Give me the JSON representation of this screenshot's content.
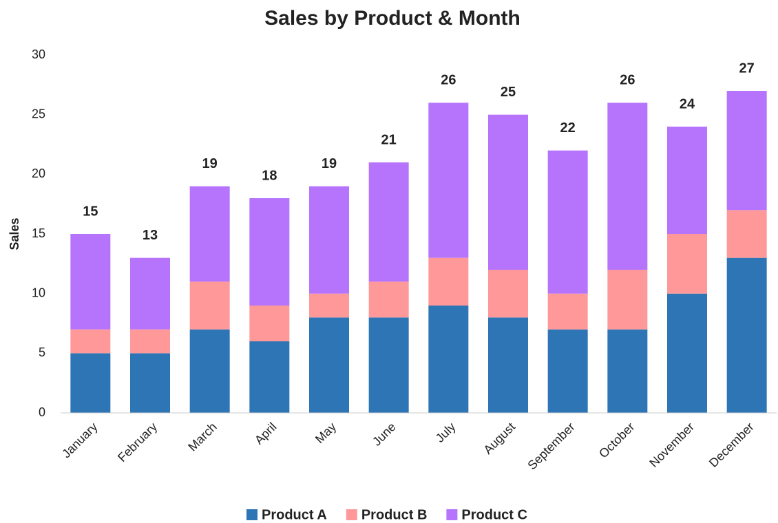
{
  "chart_data": {
    "type": "stacked_bar",
    "title": "Sales by Product & Month",
    "y_label": "Sales",
    "categories": [
      "January",
      "February",
      "March",
      "April",
      "May",
      "June",
      "July",
      "August",
      "September",
      "October",
      "November",
      "December"
    ],
    "series": [
      {
        "name": "Product A",
        "color": "#2e75b6",
        "values": [
          5,
          5,
          7,
          6,
          8,
          8,
          9,
          8,
          7,
          7,
          10,
          13
        ]
      },
      {
        "name": "Product B",
        "color": "#ff9999",
        "values": [
          2,
          2,
          4,
          3,
          2,
          3,
          4,
          4,
          3,
          5,
          5,
          4
        ]
      },
      {
        "name": "Product C",
        "color": "#b574fb",
        "values": [
          8,
          6,
          8,
          9,
          9,
          10,
          13,
          13,
          12,
          14,
          9,
          10
        ]
      }
    ],
    "totals": [
      15,
      13,
      19,
      18,
      19,
      21,
      26,
      25,
      22,
      26,
      24,
      27
    ],
    "ylim": [
      0,
      30
    ],
    "yticks": [
      0,
      5,
      10,
      15,
      20,
      25,
      30
    ],
    "grid": false,
    "legend": "bottom"
  }
}
